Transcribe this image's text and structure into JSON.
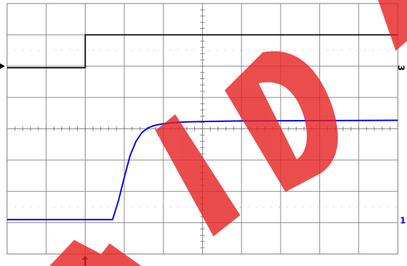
{
  "chart_data": {
    "type": "line",
    "title": "",
    "xlabel": "",
    "ylabel": "",
    "grid": true,
    "divisions": {
      "x": 10,
      "y": 8
    },
    "xlim": [
      0,
      10
    ],
    "ylim": [
      -4,
      4
    ],
    "trigger_position_div": 2.0,
    "series": [
      {
        "channel_label": "3",
        "color": "#000000",
        "ground_marker_div": 2.0,
        "x": [
          0.0,
          2.0,
          2.0,
          10.0
        ],
        "y": [
          1.95,
          1.95,
          3.0,
          3.0
        ]
      },
      {
        "channel_label": "1",
        "color": "#0000ff",
        "ground_marker_div": -2.5,
        "x": [
          0.0,
          2.7,
          2.85,
          3.0,
          3.15,
          3.3,
          3.45,
          3.6,
          3.75,
          3.9,
          4.05,
          4.3,
          4.6,
          5.0,
          6.0,
          10.0
        ],
        "y": [
          -2.9,
          -2.9,
          -2.3,
          -1.55,
          -0.85,
          -0.4,
          -0.12,
          0.02,
          0.1,
          0.14,
          0.17,
          0.2,
          0.22,
          0.23,
          0.25,
          0.27
        ]
      }
    ],
    "watermark_text": "AND"
  }
}
